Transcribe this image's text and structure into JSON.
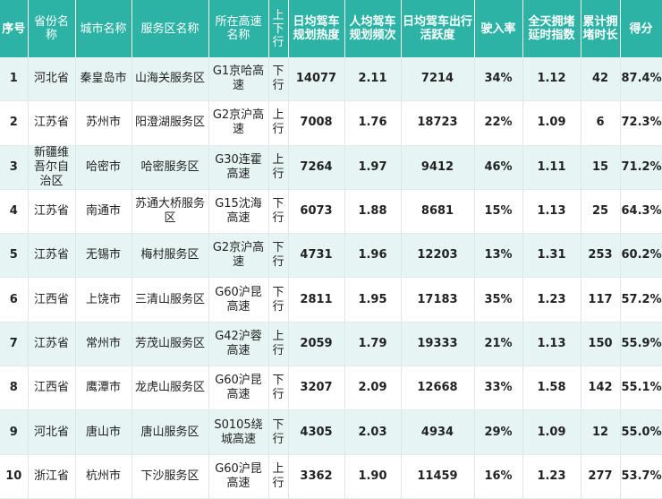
{
  "table": {
    "headers": [
      "序号",
      "省份名称",
      "城市名称",
      "服务区名称",
      "所在高速名称",
      "上下行",
      "日均驾车规划热度",
      "人均驾车规划频次",
      "日均驾车出行活跃度",
      "驶入率",
      "全天拥堵延时指数",
      "累计拥堵时长",
      "得分"
    ],
    "rows": [
      [
        "1",
        "河北省",
        "秦皇岛市",
        "山海关服务区",
        "G1京哈高速",
        "下行",
        "14077",
        "2.11",
        "7214",
        "34%",
        "1.12",
        "42",
        "87.4%"
      ],
      [
        "2",
        "江苏省",
        "苏州市",
        "阳澄湖服务区",
        "G2京沪高速",
        "上行",
        "7008",
        "1.76",
        "18723",
        "22%",
        "1.09",
        "6",
        "72.3%"
      ],
      [
        "3",
        "新疆维吾尔自治区",
        "哈密市",
        "哈密服务区",
        "G30连霍高速",
        "上行",
        "7264",
        "1.97",
        "9412",
        "46%",
        "1.11",
        "15",
        "71.2%"
      ],
      [
        "4",
        "江苏省",
        "南通市",
        "苏通大桥服务区",
        "G15沈海高速",
        "下行",
        "6073",
        "1.88",
        "8681",
        "15%",
        "1.13",
        "25",
        "64.3%"
      ],
      [
        "5",
        "江苏省",
        "无锡市",
        "梅村服务区",
        "G2京沪高速",
        "下行",
        "4731",
        "1.96",
        "12203",
        "13%",
        "1.31",
        "253",
        "60.2%"
      ],
      [
        "6",
        "江西省",
        "上饶市",
        "三清山服务区",
        "G60沪昆高速",
        "下行",
        "2811",
        "1.95",
        "17183",
        "35%",
        "1.23",
        "117",
        "57.2%"
      ],
      [
        "7",
        "江苏省",
        "常州市",
        "芳茂山服务区",
        "G42沪蓉高速",
        "上行",
        "2059",
        "1.79",
        "19333",
        "21%",
        "1.13",
        "150",
        "55.9%"
      ],
      [
        "8",
        "江西省",
        "鹰潭市",
        "龙虎山服务区",
        "G60沪昆高速",
        "下行",
        "3207",
        "2.09",
        "12668",
        "33%",
        "1.58",
        "142",
        "55.1%"
      ],
      [
        "9",
        "河北省",
        "唐山市",
        "唐山服务区",
        "S0105绕城高速",
        "下行",
        "4305",
        "2.03",
        "4934",
        "29%",
        "1.09",
        "12",
        "55.0%"
      ],
      [
        "10",
        "浙江省",
        "杭州市",
        "下沙服务区",
        "G60沪昆高速",
        "上行",
        "3362",
        "1.90",
        "11459",
        "16%",
        "1.23",
        "277",
        "53.7%"
      ]
    ]
  },
  "colors": {
    "header_bg": "#2db3a6",
    "odd_row_bg": "#e6f5f3",
    "even_row_bg": "#ffffff"
  }
}
